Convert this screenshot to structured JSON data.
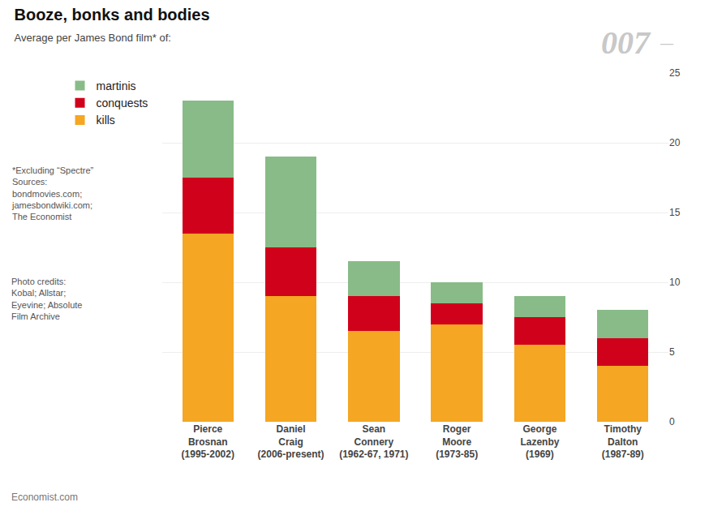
{
  "chart_data": {
    "type": "bar",
    "stacked": true,
    "title": "Booze, bonks and bodies",
    "subtitle": "Average per James Bond film* of:",
    "categories": [
      "Pierce\nBrosnan\n(1995-2002)",
      "Daniel\nCraig\n(2006-present)",
      "Sean\nConnery\n(1962-67, 1971)",
      "Roger\nMoore\n(1973-85)",
      "George\nLazenby\n(1969)",
      "Timothy\nDalton\n(1987-89)"
    ],
    "series": [
      {
        "name": "kills",
        "color": "#F5A623",
        "values": [
          13.5,
          9.0,
          6.5,
          7.0,
          5.5,
          4.0
        ]
      },
      {
        "name": "conquests",
        "color": "#D0021B",
        "values": [
          4.0,
          3.5,
          2.5,
          1.5,
          2.0,
          2.0
        ]
      },
      {
        "name": "martinis",
        "color": "#88BB88",
        "values": [
          5.5,
          6.5,
          2.5,
          1.5,
          1.5,
          2.0
        ]
      }
    ],
    "ylim": [
      0,
      25
    ],
    "yticks": [
      0,
      5,
      10,
      15,
      20,
      25
    ],
    "grid": true,
    "legend": "left",
    "annotations": [
      "007",
      "—",
      "*Excluding “Spectre”\nSources:\nbondmovies.com;\njamesbondwiki.com;\nThe Economist",
      "Photo credits:\nKobal; Allstar;\nEyevine; Absolute\nFilm Archive",
      "Economist.com"
    ]
  }
}
